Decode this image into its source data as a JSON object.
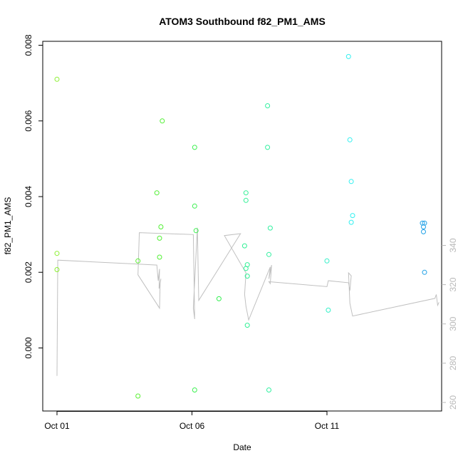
{
  "chart_data": {
    "type": "scatter",
    "title": "ATOM3 Southbound f82_PM1_AMS",
    "xlabel": "Date",
    "ylabel": "f82_PM1_AMS",
    "xlim_days": [
      0,
      9.3
    ],
    "ylim": [
      -0.0016,
      0.008
    ],
    "x_ticks": [
      {
        "day": 0,
        "label": "Oct 01"
      },
      {
        "day": 5,
        "label": "Oct 06"
      },
      {
        "day": 10,
        "label": "Oct 11"
      }
    ],
    "y_ticks": [
      {
        "value": 0.0,
        "label": "0.000"
      },
      {
        "value": 0.002,
        "label": "0.002"
      },
      {
        "value": 0.004,
        "label": "0.004"
      },
      {
        "value": 0.006,
        "label": "0.006"
      },
      {
        "value": 0.008,
        "label": "0.008"
      }
    ],
    "y2_ticks": [
      {
        "value": 260,
        "label": "260"
      },
      {
        "value": 280,
        "label": "280"
      },
      {
        "value": 300,
        "label": "300"
      },
      {
        "value": 320,
        "label": "320"
      },
      {
        "value": 340,
        "label": "340"
      }
    ],
    "y2lim": [
      258,
      350
    ],
    "points": [
      {
        "day": 0.0,
        "y": 0.0071,
        "color": "#8cf032"
      },
      {
        "day": 0.0,
        "y": 0.0025,
        "color": "#8cf032"
      },
      {
        "day": 0.0,
        "y": 0.00207,
        "color": "#8cf032"
      },
      {
        "day": 3.0,
        "y": -0.00127,
        "color": "#5af032"
      },
      {
        "day": 3.0,
        "y": 0.0023,
        "color": "#5af032"
      },
      {
        "day": 3.7,
        "y": 0.0041,
        "color": "#50f032"
      },
      {
        "day": 3.8,
        "y": 0.0029,
        "color": "#50f032"
      },
      {
        "day": 3.8,
        "y": 0.0024,
        "color": "#50f032"
      },
      {
        "day": 3.85,
        "y": 0.0032,
        "color": "#50f032"
      },
      {
        "day": 3.9,
        "y": 0.006,
        "color": "#50f032"
      },
      {
        "day": 5.1,
        "y": 0.0053,
        "color": "#3cf050"
      },
      {
        "day": 5.1,
        "y": 0.00375,
        "color": "#3cf050"
      },
      {
        "day": 5.15,
        "y": 0.0031,
        "color": "#3cf050"
      },
      {
        "day": 5.1,
        "y": -0.00111,
        "color": "#3cf050"
      },
      {
        "day": 6.0,
        "y": 0.0013,
        "color": "#32f050"
      },
      {
        "day": 7.0,
        "y": 0.0041,
        "color": "#32f096"
      },
      {
        "day": 7.0,
        "y": 0.0039,
        "color": "#32f096"
      },
      {
        "day": 6.95,
        "y": 0.0027,
        "color": "#32f096"
      },
      {
        "day": 7.0,
        "y": 0.0021,
        "color": "#32f096"
      },
      {
        "day": 7.05,
        "y": 0.0022,
        "color": "#32f096"
      },
      {
        "day": 7.05,
        "y": 0.0019,
        "color": "#32f096"
      },
      {
        "day": 7.05,
        "y": 0.0006,
        "color": "#32f096"
      },
      {
        "day": 7.8,
        "y": 0.0064,
        "color": "#32f0a0"
      },
      {
        "day": 7.8,
        "y": 0.0053,
        "color": "#32f0a0"
      },
      {
        "day": 7.9,
        "y": 0.00317,
        "color": "#32f0a0"
      },
      {
        "day": 7.85,
        "y": 0.00247,
        "color": "#32f0a0"
      },
      {
        "day": 7.85,
        "y": -0.00111,
        "color": "#32f0a0"
      },
      {
        "day": 10.0,
        "y": 0.0023,
        "color": "#32f0c8"
      },
      {
        "day": 10.05,
        "y": 0.001,
        "color": "#32f0c8"
      },
      {
        "day": 10.8,
        "y": 0.0077,
        "color": "#32f0f0"
      },
      {
        "day": 10.85,
        "y": 0.0055,
        "color": "#32f0f0"
      },
      {
        "day": 10.9,
        "y": 0.0044,
        "color": "#32f0f0"
      },
      {
        "day": 10.95,
        "y": 0.0035,
        "color": "#32f0f0"
      },
      {
        "day": 10.9,
        "y": 0.00332,
        "color": "#32f0f0"
      },
      {
        "day": 14.0,
        "y": 0.0033,
        "color": "#1ea0e6"
      },
      {
        "day": 14.1,
        "y": 0.0033,
        "color": "#1ea0e6"
      },
      {
        "day": 14.05,
        "y": 0.0032,
        "color": "#1ea0e6"
      },
      {
        "day": 14.05,
        "y": 0.00307,
        "color": "#1ea0e6"
      },
      {
        "day": 14.1,
        "y": 0.002,
        "color": "#1ea0e6"
      }
    ],
    "line_y2": [
      [
        0.0,
        273.5
      ],
      [
        0.03,
        332.5
      ],
      [
        3.0,
        330.5
      ],
      [
        3.7,
        330.0
      ],
      [
        3.75,
        322.0
      ],
      [
        3.8,
        328.0
      ],
      [
        3.78,
        318.0
      ],
      [
        3.85,
        323.0
      ],
      [
        3.82,
        320.5
      ],
      [
        3.8,
        308.0
      ],
      [
        3.0,
        325.0
      ],
      [
        3.05,
        346.5
      ],
      [
        5.05,
        345.5
      ],
      [
        5.1,
        302.5
      ],
      [
        5.05,
        308.0
      ],
      [
        5.2,
        349.0
      ],
      [
        5.25,
        312.0
      ],
      [
        6.8,
        346.0
      ],
      [
        6.2,
        345.0
      ],
      [
        7.0,
        326.0
      ],
      [
        6.95,
        315.0
      ],
      [
        7.0,
        309.0
      ],
      [
        7.1,
        302.0
      ],
      [
        7.9,
        329.0
      ],
      [
        7.85,
        323.0
      ],
      [
        7.95,
        330.0
      ],
      [
        7.9,
        320.5
      ],
      [
        7.85,
        321.5
      ],
      [
        10.0,
        319.0
      ],
      [
        10.05,
        322.0
      ],
      [
        10.8,
        321.0
      ],
      [
        10.85,
        317.0
      ],
      [
        10.9,
        324.5
      ],
      [
        10.8,
        326.0
      ],
      [
        10.85,
        310.5
      ],
      [
        10.95,
        304.0
      ],
      [
        14.0,
        313.0
      ],
      [
        14.05,
        315.0
      ],
      [
        14.1,
        309.5
      ],
      [
        14.15,
        311.0
      ]
    ]
  }
}
